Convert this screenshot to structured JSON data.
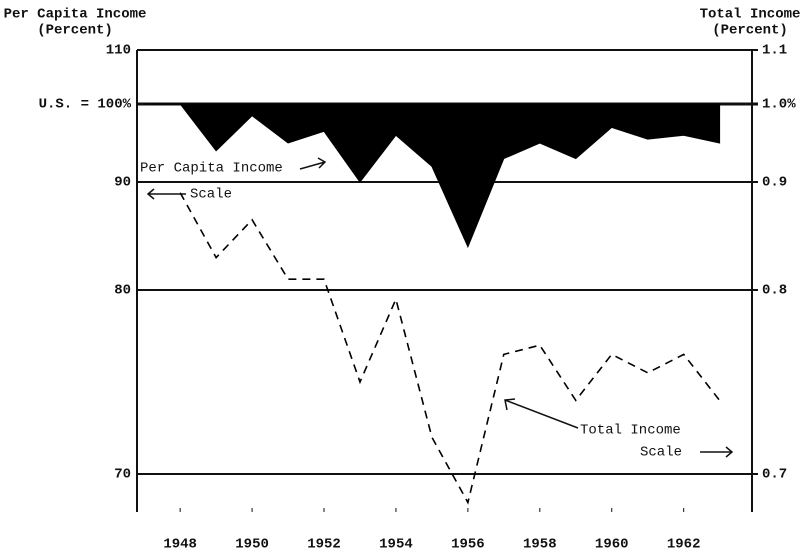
{
  "chart_data": {
    "type": "line",
    "y_axis_title": [
      "Per Capita Income",
      "(Percent)"
    ],
    "y2_axis_title": [
      "Total Income",
      "(Percent)"
    ],
    "xlim": [
      1946.8,
      1963.9
    ],
    "xticks": [
      1948,
      1950,
      1952,
      1954,
      1956,
      1958,
      1960,
      1962
    ],
    "ylim": [
      68,
      110
    ],
    "yticks": [
      110,
      {
        "value": 100,
        "label": "U.S. = 100%"
      },
      90,
      80,
      70
    ],
    "y2lim": [
      0.68,
      1.1
    ],
    "y2ticks": [
      1.1,
      {
        "value": 1.0,
        "label": "1.0%"
      },
      0.9,
      0.8,
      0.7
    ],
    "grid": true,
    "series": [
      {
        "name": "Per Capita Income",
        "style": "filled-area",
        "color": "#000000",
        "x": [
          1947,
          1948,
          1949,
          1950,
          1951,
          1952,
          1953,
          1954,
          1955,
          1956,
          1957,
          1958,
          1959,
          1960,
          1961,
          1962,
          1963
        ],
        "values": [
          100,
          100,
          94,
          98.5,
          95,
          96.5,
          90,
          96,
          92,
          84,
          93,
          95,
          93,
          97,
          95.5,
          96,
          95
        ]
      },
      {
        "name": "Total Income",
        "style": "dashed",
        "color": "#000000",
        "axis": "y2",
        "x": [
          1948,
          1949,
          1950,
          1951,
          1952,
          1953,
          1954,
          1955,
          1956,
          1957,
          1958,
          1959,
          1960,
          1961,
          1962,
          1963
        ],
        "values": [
          0.89,
          0.83,
          0.865,
          0.81,
          0.81,
          0.75,
          0.795,
          0.72,
          0.685,
          0.765,
          0.77,
          0.74,
          0.765,
          0.755,
          0.765,
          0.74
        ]
      }
    ],
    "annotations": [
      "Per Capita Income",
      "Scale",
      "Total Income",
      "Scale"
    ]
  }
}
